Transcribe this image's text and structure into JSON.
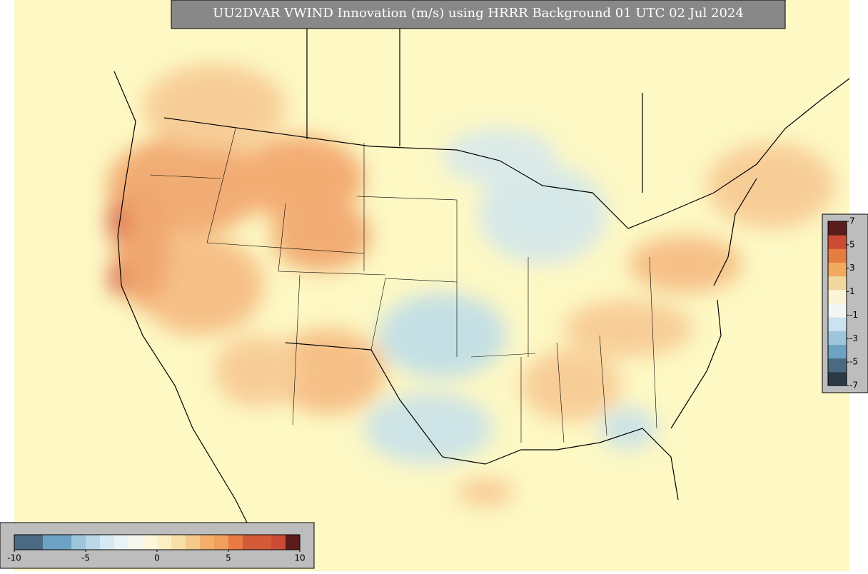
{
  "title": "UU2DVAR VWIND Innovation (m/s) using HRRR Background 01 UTC 02 Jul 2024",
  "colorbar_right": {
    "lim": [
      -7,
      7
    ],
    "ticks": [
      7,
      5,
      3,
      1,
      -1,
      -3,
      -5,
      -7
    ],
    "colors": [
      "#2b3a45",
      "#4a6a82",
      "#6ea2c4",
      "#9dc6dc",
      "#cbe3ee",
      "#f2f6f4",
      "#fcf4d6",
      "#f3d7a0",
      "#f2aa5e",
      "#e77c43",
      "#cc4b35",
      "#5b1c1c"
    ]
  },
  "colorbar_bottom": {
    "lim": [
      -10,
      10
    ],
    "ticks": [
      -10,
      -5,
      0,
      5,
      10
    ],
    "colors": [
      "#4a6a82",
      "#4a6a82",
      "#6ea2c4",
      "#6ea2c4",
      "#9dc6dc",
      "#b9d8e8",
      "#d5eaf2",
      "#e8f3f5",
      "#f6f8ee",
      "#fdf8dc",
      "#fcefc4",
      "#f8dfa8",
      "#f4c98a",
      "#f2b06a",
      "#f0a05a",
      "#e87a43",
      "#d45a3a",
      "#d45a3a",
      "#cc4b35",
      "#5b1c1c"
    ]
  }
}
